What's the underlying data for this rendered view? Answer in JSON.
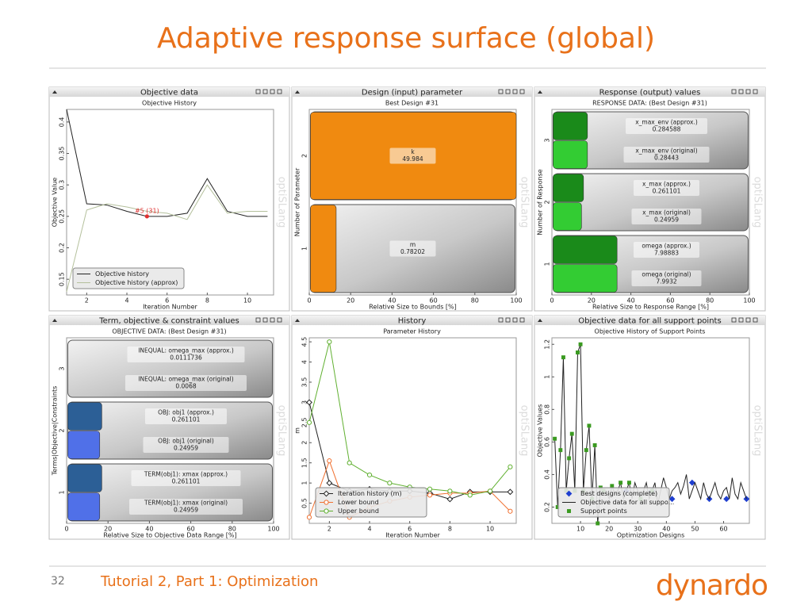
{
  "slide": {
    "title": "Adaptive response surface (global)",
    "page": "32",
    "footer": "Tutorial 2, Part 1: Optimization",
    "logo": "dynardo",
    "watermark": "optiSLang"
  },
  "chart_data": [
    {
      "type": "line",
      "panel_title": "Objective data",
      "title": "Objective History",
      "x_label": "Iteration Number",
      "y_label": "Objective Value",
      "x": [
        1,
        2,
        3,
        4,
        5,
        6,
        7,
        8,
        9,
        10,
        11
      ],
      "xlim": [
        1,
        11.3
      ],
      "xticks": [
        2,
        4,
        6,
        8,
        10
      ],
      "ylim": [
        0.125,
        0.42
      ],
      "yticks": [
        0.15,
        0.2,
        0.25,
        0.3,
        0.35,
        0.4
      ],
      "legend": "lower left",
      "series": [
        {
          "name": "Objective history",
          "color": "#222222",
          "marker": "none",
          "values": [
            0.42,
            0.27,
            0.268,
            0.258,
            0.25,
            0.25,
            0.255,
            0.31,
            0.258,
            0.25,
            0.25
          ]
        },
        {
          "name": "Objective history (approx)",
          "color": "#b4c09c",
          "marker": "none",
          "values": [
            0.13,
            0.26,
            0.27,
            0.265,
            0.258,
            0.255,
            0.245,
            0.3,
            0.255,
            0.258,
            0.258
          ]
        }
      ],
      "annotation": {
        "text": "#5 (31)",
        "x": 5,
        "y": 0.25,
        "color": "#e03030"
      }
    },
    {
      "type": "bar",
      "panel_title": "Design (input) parameter",
      "title": "Best Design #31",
      "x_label": "Relative Size to Bounds [%]",
      "y_label": "Number of Parameter",
      "categories": [
        "1",
        "2"
      ],
      "xlim": [
        0,
        100
      ],
      "xticks": [
        0,
        20,
        40,
        60,
        80,
        100
      ],
      "series": [
        {
          "color": "#f08a10",
          "values": [
            13,
            100
          ],
          "names": [
            "m",
            "k"
          ],
          "readouts": [
            "0.78202",
            "49.984"
          ]
        }
      ]
    },
    {
      "type": "bar",
      "panel_title": "Response (output) values",
      "title": "RESPONSE DATA: (Best Design #31)",
      "x_label": "Relative Size to Response Range [%]",
      "y_label": "Number of Response",
      "categories": [
        "1",
        "2",
        "3"
      ],
      "xlim": [
        0,
        100
      ],
      "xticks": [
        0,
        20,
        40,
        60,
        80,
        100
      ],
      "series": [
        {
          "color": "#1a8a1a",
          "values": [
            33,
            16,
            18
          ],
          "names": [
            "omega (approx.)",
            "x_max (approx.)",
            "x_max_env (approx.)"
          ],
          "readouts": [
            "7.98883",
            "0.261101",
            "0.284588"
          ]
        },
        {
          "color": "#33cc33",
          "values": [
            33,
            15,
            18
          ],
          "names": [
            "omega (original)",
            "x_max (original)",
            "x_max_env (original)"
          ],
          "readouts": [
            "7.9932",
            "0.24959",
            "0.28443"
          ]
        }
      ]
    },
    {
      "type": "bar",
      "panel_title": "Term, objective & constraint values",
      "title": "OBJECTIVE DATA: (Best Design #31)",
      "x_label": "Relative Size to Objective Data Range [%]",
      "y_label": "Terms|Objective|Constraints",
      "categories": [
        "1",
        "2",
        "3"
      ],
      "xlim": [
        0,
        100
      ],
      "xticks": [
        0,
        20,
        40,
        60,
        80,
        100
      ],
      "series": [
        {
          "color": "#2c5f96",
          "values": [
            17,
            17,
            0
          ],
          "names": [
            "TERM(obj1): xmax (approx.)",
            "OBJ: obj1 (approx.)",
            "INEQUAL: omega_max (approx.)"
          ],
          "readouts": [
            "0.261101",
            "0.261101",
            "0.0111736"
          ]
        },
        {
          "color": "#5070e8",
          "values": [
            16,
            16,
            0
          ],
          "names": [
            "TERM(obj1): xmax (original)",
            "OBJ: obj1 (original)",
            "INEQUAL: omega_max (original)"
          ],
          "readouts": [
            "0.24959",
            "0.24959",
            "0.0068"
          ]
        }
      ]
    },
    {
      "type": "line",
      "panel_title": "History",
      "title": "Parameter History",
      "x_label": "Iteration Number",
      "y_label": "m",
      "x": [
        1,
        2,
        3,
        4,
        5,
        6,
        7,
        8,
        9,
        10,
        11
      ],
      "xlim": [
        1,
        11.3
      ],
      "xticks": [
        2,
        4,
        6,
        8,
        10
      ],
      "ylim": [
        0,
        4.6
      ],
      "yticks": [
        0.5,
        1,
        1.5,
        2,
        2.5,
        3,
        3.5,
        4,
        4.5
      ],
      "legend": "lower left",
      "series": [
        {
          "name": "Iteration history (m)",
          "color": "#222222",
          "marker": "open-diamond",
          "values": [
            3.0,
            1.0,
            0.8,
            0.85,
            0.8,
            0.8,
            0.75,
            0.6,
            0.78,
            0.78,
            0.78
          ]
        },
        {
          "name": "Lower bound",
          "color": "#f07030",
          "marker": "open-circle",
          "values": [
            0.15,
            1.55,
            0.15,
            0.4,
            0.55,
            0.65,
            0.7,
            0.75,
            0.75,
            0.8,
            0.3
          ]
        },
        {
          "name": "Upper bound",
          "color": "#60b030",
          "marker": "open-circle",
          "values": [
            2.5,
            4.5,
            1.5,
            1.2,
            1.0,
            0.9,
            0.85,
            0.8,
            0.7,
            0.8,
            1.4
          ]
        }
      ]
    },
    {
      "type": "line",
      "panel_title": "Objective data for all support points",
      "title": "Objective History of Support Points",
      "x_label": "Optimization Designs",
      "y_label": "Objective Values",
      "xlim": [
        0,
        69
      ],
      "xticks": [
        10,
        20,
        30,
        40,
        50,
        60
      ],
      "ylim": [
        0.1,
        1.24
      ],
      "yticks": [
        0.2,
        0.4,
        0.6,
        0.8,
        1,
        1.2
      ],
      "legend": "lower left",
      "series": [
        {
          "name": "Best designs (complete)",
          "color": "#1f3fd0",
          "marker": "diamond",
          "line": false,
          "x": [
            26,
            35,
            42,
            49,
            55,
            61,
            68
          ],
          "values": [
            0.3,
            0.3,
            0.25,
            0.35,
            0.25,
            0.25,
            0.25
          ]
        },
        {
          "name": "Objective data for all suppo...",
          "color": "#222222",
          "marker": "none",
          "x": [
            1,
            2,
            3,
            4,
            5,
            6,
            7,
            8,
            9,
            10,
            11,
            12,
            13,
            14,
            15,
            16,
            17,
            18,
            19,
            20,
            21,
            22,
            23,
            24,
            25,
            26,
            27,
            28,
            29,
            30,
            31,
            32,
            33,
            34,
            35,
            36,
            37,
            38,
            39,
            40,
            41,
            42,
            43,
            44,
            45,
            46,
            47,
            48,
            49,
            50,
            51,
            52,
            53,
            54,
            55,
            56,
            57,
            58,
            59,
            60,
            61,
            62,
            63,
            64,
            65,
            66,
            67,
            68
          ],
          "values": [
            0.62,
            0.2,
            0.55,
            1.12,
            0.3,
            0.5,
            0.65,
            0.3,
            1.15,
            1.2,
            0.3,
            0.55,
            0.7,
            0.25,
            0.58,
            0.1,
            0.32,
            0.3,
            0.3,
            0.25,
            0.33,
            0.28,
            0.3,
            0.35,
            0.25,
            0.3,
            0.35,
            0.25,
            0.35,
            0.3,
            0.25,
            0.3,
            0.35,
            0.25,
            0.3,
            0.35,
            0.22,
            0.3,
            0.38,
            0.32,
            0.25,
            0.3,
            0.32,
            0.35,
            0.28,
            0.33,
            0.4,
            0.25,
            0.3,
            0.35,
            0.3,
            0.25,
            0.35,
            0.28,
            0.25,
            0.3,
            0.35,
            0.28,
            0.25,
            0.3,
            0.32,
            0.25,
            0.38,
            0.28,
            0.25,
            0.35,
            0.3,
            0.25
          ]
        },
        {
          "name": "Support points",
          "color": "#3a9a20",
          "marker": "square",
          "line": false,
          "x": [
            1,
            2,
            3,
            4,
            5,
            6,
            7,
            8,
            9,
            10,
            11,
            12,
            13,
            14,
            15,
            16,
            17,
            18,
            21,
            24,
            27,
            31,
            35
          ],
          "values": [
            0.62,
            0.2,
            0.55,
            1.12,
            0.3,
            0.5,
            0.65,
            0.3,
            1.15,
            1.2,
            0.3,
            0.55,
            0.7,
            0.25,
            0.58,
            0.1,
            0.32,
            0.3,
            0.33,
            0.35,
            0.35,
            0.25,
            0.3
          ]
        }
      ]
    }
  ]
}
